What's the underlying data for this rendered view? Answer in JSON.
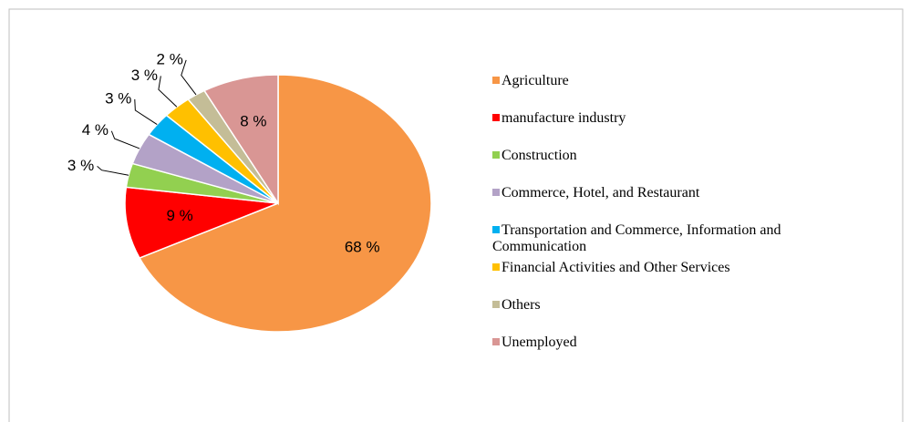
{
  "chart_data": {
    "type": "pie",
    "categories": [
      "Agriculture",
      "manufacture industry",
      "Construction",
      "Commerce, Hotel, and Restaurant",
      "Transportation and Commerce, Information and Communication",
      "Financial Activities and Other Services",
      "Others",
      "Unemployed"
    ],
    "values": [
      68,
      9,
      3,
      4,
      3,
      3,
      2,
      8
    ],
    "value_labels": [
      "68 %",
      "9 %",
      "3 %",
      "4 %",
      "3 %",
      "3 %",
      "2 %",
      "8 %"
    ],
    "colors": [
      "#f79646",
      "#ff0000",
      "#92d050",
      "#b3a2c7",
      "#00b0f0",
      "#ffc000",
      "#c4bd97",
      "#d99694"
    ],
    "legend": "right"
  }
}
